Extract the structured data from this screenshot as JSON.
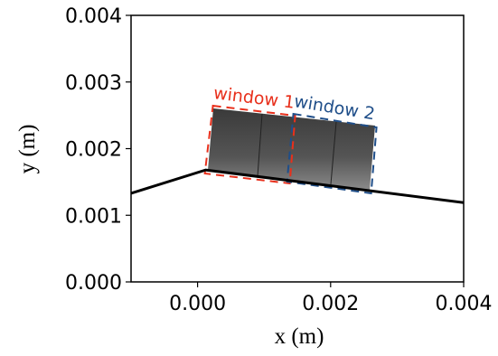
{
  "chart_data": {
    "type": "line",
    "xlabel": "x (m)",
    "ylabel": "y (m)",
    "xlim": [
      -0.001,
      0.004
    ],
    "xticks": [
      {
        "value": 0,
        "label": "0.000"
      },
      {
        "value": 0.002,
        "label": "0.002"
      },
      {
        "value": 0.004,
        "label": "0.004"
      }
    ],
    "ylim": [
      0,
      0.004
    ],
    "yticks": [
      {
        "value": 0,
        "label": "0.000"
      },
      {
        "value": 0.001,
        "label": "0.001"
      },
      {
        "value": 0.002,
        "label": "0.002"
      },
      {
        "value": 0.003,
        "label": "0.003"
      },
      {
        "value": 0.004,
        "label": "0.004"
      }
    ],
    "series": [
      {
        "color": "#000000",
        "x": [
          -0.001,
          0.000122,
          0.004
        ],
        "values": [
          0.00133,
          0.00168,
          0.00119
        ]
      }
    ],
    "annotations": [
      {
        "text": "window 1",
        "color": "#e8301c",
        "x": [
          0.000231,
          0.001467,
          0.001386,
          0.000109
        ],
        "y": [
          0.002644,
          0.002495,
          0.001478,
          0.001627
        ]
      },
      {
        "text": "window 2",
        "color": "#1f4e89",
        "x": [
          0.00144,
          0.00269,
          0.002609,
          0.001345
        ],
        "y": [
          0.002522,
          0.002319,
          0.001329,
          0.001505
        ]
      }
    ]
  }
}
